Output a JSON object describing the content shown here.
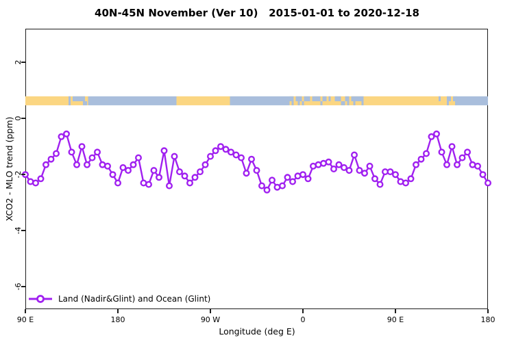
{
  "title": "40N-45N November (Ver 10)   2015-01-01 to 2020-12-18",
  "legend": {
    "label": "Land (Nadir&Glint) and Ocean (Glint)"
  },
  "colors": {
    "line": "#A020F0",
    "marker_fill": "#ffffff",
    "land": "#FBD682",
    "ocean": "#A9BEDC",
    "axis": "#1c1c1c"
  },
  "chart_data": {
    "type": "line",
    "title": "40N-45N November (Ver 10)   2015-01-01 to 2020-12-18",
    "xlabel": "Longitude (deg E)",
    "ylabel": "XCO2 - MLO trend (ppm)",
    "legend_position": "bottom-left",
    "grid": false,
    "marker": "open-circle",
    "x_start_label": "90 E",
    "x_step_deg": 5,
    "x_span_deg": 450,
    "x_ticks": [
      {
        "deg": 0,
        "label": "90 E"
      },
      {
        "deg": 90,
        "label": "180"
      },
      {
        "deg": 180,
        "label": "90 W"
      },
      {
        "deg": 270,
        "label": "0"
      },
      {
        "deg": 360,
        "label": "90 E"
      },
      {
        "deg": 450,
        "label": "180"
      }
    ],
    "y_ticks": [
      {
        "value": 2,
        "label": "2"
      },
      {
        "value": 0,
        "label": "0"
      },
      {
        "value": -2,
        "label": "-2"
      },
      {
        "value": -4,
        "label": "-4"
      },
      {
        "value": -6,
        "label": "-6"
      }
    ],
    "ylim": [
      -6.8,
      3.2
    ],
    "series": [
      {
        "name": "Land (Nadir&Glint) and Ocean (Glint)",
        "values": [
          -2.0,
          -2.25,
          -2.3,
          -2.15,
          -1.65,
          -1.45,
          -1.25,
          -0.65,
          -0.55,
          -1.2,
          -1.65,
          -1.0,
          -1.65,
          -1.4,
          -1.2,
          -1.65,
          -1.7,
          -2.0,
          -2.3,
          -1.75,
          -1.85,
          -1.65,
          -1.4,
          -2.3,
          -2.35,
          -1.85,
          -2.1,
          -1.15,
          -2.4,
          -1.35,
          -1.9,
          -2.05,
          -2.3,
          -2.1,
          -1.9,
          -1.65,
          -1.35,
          -1.15,
          -1.0,
          -1.1,
          -1.2,
          -1.3,
          -1.4,
          -1.95,
          -1.45,
          -1.85,
          -2.4,
          -2.55,
          -2.2,
          -2.45,
          -2.4,
          -2.1,
          -2.25,
          -2.05,
          -2.0,
          -2.15,
          -1.7,
          -1.65,
          -1.6,
          -1.55,
          -1.8,
          -1.65,
          -1.75,
          -1.85,
          -1.3,
          -1.85,
          -1.95,
          -1.7,
          -2.15,
          -2.35,
          -1.9,
          -1.9,
          -2.0,
          -2.25,
          -2.3,
          -2.15,
          -1.65,
          -1.45,
          -1.25,
          -0.65,
          -0.55,
          -1.2,
          -1.65,
          -1.0,
          -1.65,
          -1.4,
          -1.2,
          -1.65,
          -1.7,
          -2.0,
          -2.3
        ]
      }
    ],
    "map_band": {
      "description": "40N-45N land/ocean strip drawn across the plot",
      "y_range_value": [
        0.47,
        0.79
      ],
      "segments": [
        {
          "type": "land",
          "from_deg": 0,
          "to_deg": 42
        },
        {
          "type": "coast",
          "from_deg": 42,
          "to_deg": 61
        },
        {
          "type": "ocean",
          "from_deg": 61,
          "to_deg": 147
        },
        {
          "type": "land",
          "from_deg": 147,
          "to_deg": 199
        },
        {
          "type": "ocean",
          "from_deg": 199,
          "to_deg": 257
        },
        {
          "type": "coast",
          "from_deg": 257,
          "to_deg": 329
        },
        {
          "type": "land",
          "from_deg": 329,
          "to_deg": 402
        },
        {
          "type": "coast",
          "from_deg": 402,
          "to_deg": 420
        },
        {
          "type": "ocean",
          "from_deg": 420,
          "to_deg": 450
        }
      ]
    }
  }
}
